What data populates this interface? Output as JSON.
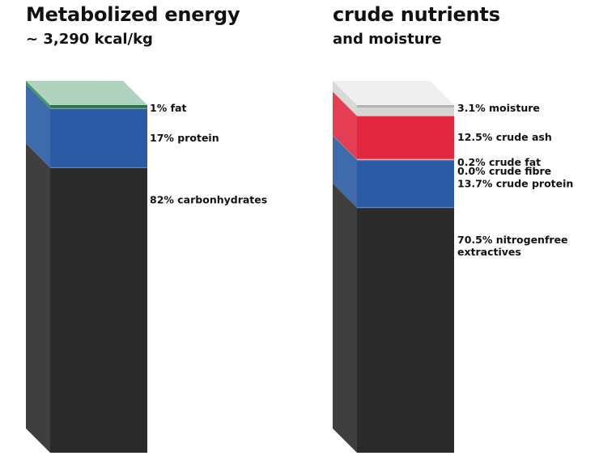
{
  "charts": [
    {
      "title": "Metabolized energy",
      "subtitle": "~ 3,290 kcal/kg"
    },
    {
      "title": "crude nutrients",
      "subtitle": "and moisture"
    }
  ],
  "colors": {
    "carbohydrate": "#2a2a2a",
    "protein": "#2a5ba4",
    "fat": "#2e8b57",
    "fibre": "#f2c14e",
    "ash": "#e2283f",
    "moisture": "#d4d4d4"
  },
  "chart_data": [
    {
      "type": "bar",
      "title": "Metabolized energy",
      "subtitle": "~ 3,290 kcal/kg",
      "unit": "%",
      "ylim": [
        0,
        100
      ],
      "segments": [
        {
          "label": "82% carbonhydrates",
          "value": 82,
          "color": "#2a2a2a"
        },
        {
          "label": "17% protein",
          "value": 17,
          "color": "#2a5ba4"
        },
        {
          "label": "1% fat",
          "value": 1,
          "color": "#2e8b57"
        }
      ]
    },
    {
      "type": "bar",
      "title": "crude nutrients",
      "subtitle": "and moisture",
      "unit": "%",
      "ylim": [
        0,
        100
      ],
      "segments": [
        {
          "label": "70.5% nitrogenfree extractives",
          "value": 70.5,
          "color": "#2a2a2a"
        },
        {
          "label": "13.7% crude protein",
          "value": 13.7,
          "color": "#2a5ba4"
        },
        {
          "label": "0.2% crude fat",
          "value": 0.2,
          "color": "#2e8b57"
        },
        {
          "label": "0.0% crude fibre",
          "value": 0.0,
          "color": "#f2c14e"
        },
        {
          "label": "12.5% crude ash",
          "value": 12.5,
          "color": "#e2283f"
        },
        {
          "label": "3.1% moisture",
          "value": 3.1,
          "color": "#d4d4d4"
        }
      ]
    }
  ]
}
